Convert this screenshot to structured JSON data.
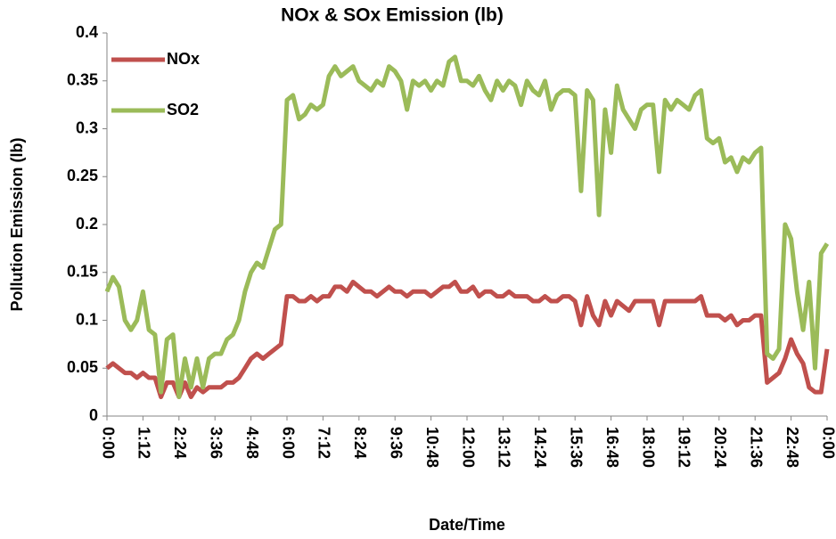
{
  "chart_data": {
    "type": "line",
    "title": "NOx & SOx Emission (lb)",
    "y_label": "Pollution Emission (lb)",
    "x_label": "Date/Time",
    "categories": [
      "0:00",
      null,
      null,
      null,
      null,
      null,
      "1:12",
      null,
      null,
      null,
      null,
      null,
      "2:24",
      null,
      null,
      null,
      null,
      null,
      "3:36",
      null,
      null,
      null,
      null,
      null,
      "4:48",
      null,
      null,
      null,
      null,
      null,
      "6:00",
      null,
      null,
      null,
      null,
      null,
      "7:12",
      null,
      null,
      null,
      null,
      null,
      "8:24",
      null,
      null,
      null,
      null,
      null,
      "9:36",
      null,
      null,
      null,
      null,
      null,
      "10:48",
      null,
      null,
      null,
      null,
      null,
      "12:00",
      null,
      null,
      null,
      null,
      null,
      "13:12",
      null,
      null,
      null,
      null,
      null,
      "14:24",
      null,
      null,
      null,
      null,
      null,
      "15:36",
      null,
      null,
      null,
      null,
      null,
      "16:48",
      null,
      null,
      null,
      null,
      null,
      "18:00",
      null,
      null,
      null,
      null,
      null,
      "19:12",
      null,
      null,
      null,
      null,
      null,
      "20:24",
      null,
      null,
      null,
      null,
      null,
      "21:36",
      null,
      null,
      null,
      null,
      null,
      "22:48",
      null,
      null,
      null,
      null,
      null,
      "0:00"
    ],
    "series": [
      {
        "name": "NOx",
        "color": "#c0504d",
        "values": [
          0.05,
          0.055,
          0.05,
          0.045,
          0.045,
          0.04,
          0.045,
          0.04,
          0.04,
          0.02,
          0.035,
          0.035,
          0.02,
          0.035,
          0.02,
          0.03,
          0.025,
          0.03,
          0.03,
          0.03,
          0.035,
          0.035,
          0.04,
          0.05,
          0.06,
          0.065,
          0.06,
          0.065,
          0.07,
          0.075,
          0.125,
          0.125,
          0.12,
          0.12,
          0.125,
          0.12,
          0.125,
          0.125,
          0.135,
          0.135,
          0.13,
          0.14,
          0.135,
          0.13,
          0.13,
          0.125,
          0.13,
          0.135,
          0.13,
          0.13,
          0.125,
          0.13,
          0.13,
          0.13,
          0.125,
          0.13,
          0.135,
          0.135,
          0.14,
          0.13,
          0.13,
          0.135,
          0.125,
          0.13,
          0.13,
          0.125,
          0.125,
          0.13,
          0.125,
          0.125,
          0.125,
          0.12,
          0.12,
          0.125,
          0.12,
          0.12,
          0.125,
          0.125,
          0.12,
          0.095,
          0.125,
          0.105,
          0.095,
          0.12,
          0.105,
          0.12,
          0.115,
          0.11,
          0.12,
          0.12,
          0.12,
          0.12,
          0.095,
          0.12,
          0.12,
          0.12,
          0.12,
          0.12,
          0.12,
          0.125,
          0.105,
          0.105,
          0.105,
          0.1,
          0.105,
          0.095,
          0.1,
          0.1,
          0.105,
          0.105,
          0.035,
          0.04,
          0.045,
          0.06,
          0.08,
          0.065,
          0.055,
          0.03,
          0.025,
          0.025,
          0.07
        ]
      },
      {
        "name": "SO2",
        "color": "#9bbb59",
        "values": [
          0.13,
          0.145,
          0.135,
          0.1,
          0.09,
          0.1,
          0.13,
          0.09,
          0.085,
          0.025,
          0.08,
          0.085,
          0.02,
          0.06,
          0.03,
          0.06,
          0.03,
          0.06,
          0.065,
          0.065,
          0.08,
          0.085,
          0.1,
          0.13,
          0.15,
          0.16,
          0.155,
          0.175,
          0.195,
          0.2,
          0.33,
          0.335,
          0.31,
          0.315,
          0.325,
          0.32,
          0.325,
          0.355,
          0.365,
          0.355,
          0.36,
          0.365,
          0.35,
          0.345,
          0.34,
          0.35,
          0.345,
          0.365,
          0.36,
          0.35,
          0.32,
          0.35,
          0.345,
          0.35,
          0.34,
          0.35,
          0.345,
          0.37,
          0.375,
          0.35,
          0.35,
          0.345,
          0.355,
          0.34,
          0.33,
          0.35,
          0.34,
          0.35,
          0.345,
          0.325,
          0.35,
          0.34,
          0.335,
          0.35,
          0.32,
          0.335,
          0.34,
          0.34,
          0.335,
          0.235,
          0.34,
          0.33,
          0.21,
          0.32,
          0.275,
          0.345,
          0.32,
          0.31,
          0.3,
          0.32,
          0.325,
          0.325,
          0.255,
          0.33,
          0.32,
          0.33,
          0.325,
          0.32,
          0.335,
          0.34,
          0.29,
          0.285,
          0.29,
          0.265,
          0.27,
          0.255,
          0.27,
          0.265,
          0.275,
          0.28,
          0.065,
          0.06,
          0.07,
          0.2,
          0.185,
          0.13,
          0.09,
          0.14,
          0.05,
          0.17,
          0.18
        ]
      }
    ],
    "ylim": [
      0,
      0.4
    ],
    "yticks": [
      0,
      0.05,
      0.1,
      0.15,
      0.2,
      0.25,
      0.3,
      0.35,
      0.4
    ],
    "grid": false,
    "legend": "upper left"
  }
}
